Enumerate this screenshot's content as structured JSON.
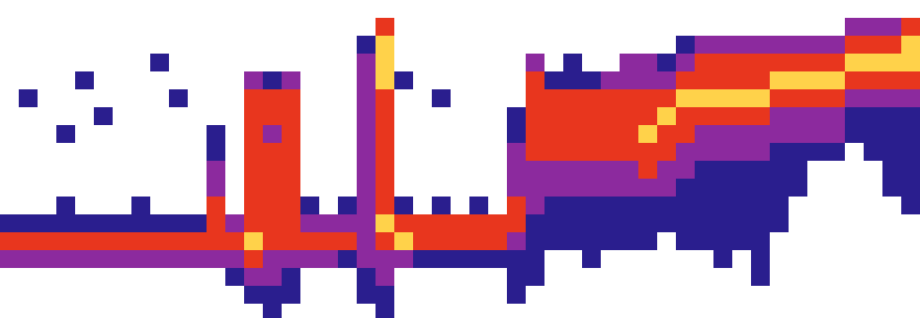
{
  "chart_data": {
    "type": "heatmap",
    "tick_labels": false,
    "grid": false,
    "xlim": [
      0,
      1029
    ],
    "ylim": [
      356,
      0
    ],
    "zlim": [
      1,
      4
    ],
    "colors": [
      "#2a1e8e",
      "#8c2a9e",
      "#e8361e",
      "#ffd24a"
    ],
    "x": [
      10.5,
      31.5,
      52.5,
      73.5,
      94.5,
      115.5,
      136.5,
      157.5,
      178.5,
      199.5,
      220.5,
      241.5,
      262.5,
      283.5,
      304.5,
      325.5,
      346.5,
      367.5,
      388.5,
      409.5,
      430.5,
      451.5,
      472.5,
      493.5,
      514.5,
      535.5,
      556.5,
      577.5,
      598.5,
      619.5,
      640.5,
      661.5,
      682.5,
      703.5,
      724.5,
      745.5,
      766.5,
      787.5,
      808.5,
      829.5,
      850.5,
      871.5,
      892.5,
      913.5,
      934.5,
      955.5,
      976.5,
      997.5,
      1018.5
    ],
    "y": [
      10,
      30,
      50,
      70,
      90,
      110,
      130,
      150,
      170,
      190,
      210,
      230,
      250,
      270,
      290,
      310,
      330,
      350
    ],
    "z": [
      [
        null,
        null,
        null,
        null,
        null,
        null,
        null,
        null,
        null,
        null,
        null,
        null,
        null,
        null,
        null,
        null,
        null,
        null,
        null,
        null,
        null,
        null,
        null,
        null,
        null,
        null,
        null,
        null,
        null,
        null,
        null,
        null,
        null,
        null,
        null,
        null,
        null,
        null,
        null,
        null,
        null,
        null,
        null,
        null,
        null,
        null,
        null,
        null,
        null
      ],
      [
        null,
        null,
        null,
        null,
        null,
        null,
        null,
        null,
        null,
        null,
        null,
        null,
        null,
        null,
        null,
        null,
        null,
        null,
        null,
        null,
        3,
        null,
        null,
        null,
        null,
        null,
        null,
        null,
        null,
        null,
        null,
        null,
        null,
        null,
        null,
        null,
        null,
        null,
        null,
        null,
        null,
        null,
        null,
        null,
        null,
        2,
        2,
        2,
        3
      ],
      [
        null,
        null,
        null,
        null,
        null,
        null,
        null,
        null,
        null,
        null,
        null,
        null,
        null,
        null,
        null,
        null,
        null,
        null,
        null,
        1,
        4,
        null,
        null,
        null,
        null,
        null,
        null,
        null,
        null,
        null,
        null,
        null,
        null,
        null,
        null,
        null,
        1,
        2,
        2,
        2,
        2,
        2,
        2,
        2,
        2,
        3,
        3,
        3,
        4
      ],
      [
        null,
        null,
        null,
        null,
        null,
        null,
        null,
        null,
        1,
        null,
        null,
        null,
        null,
        null,
        null,
        null,
        null,
        null,
        null,
        2,
        4,
        null,
        null,
        null,
        null,
        null,
        null,
        null,
        2,
        null,
        1,
        null,
        null,
        2,
        2,
        1,
        2,
        3,
        3,
        3,
        3,
        3,
        3,
        3,
        3,
        4,
        4,
        4,
        4
      ],
      [
        null,
        null,
        null,
        null,
        1,
        null,
        null,
        null,
        null,
        null,
        null,
        null,
        null,
        2,
        1,
        2,
        null,
        null,
        null,
        2,
        4,
        1,
        null,
        null,
        null,
        null,
        null,
        null,
        3,
        1,
        1,
        1,
        2,
        2,
        2,
        2,
        3,
        3,
        3,
        3,
        3,
        4,
        4,
        4,
        4,
        3,
        3,
        3,
        3
      ],
      [
        null,
        1,
        null,
        null,
        null,
        null,
        null,
        null,
        null,
        1,
        null,
        null,
        null,
        3,
        3,
        3,
        null,
        null,
        null,
        2,
        3,
        null,
        null,
        1,
        null,
        null,
        null,
        null,
        3,
        3,
        3,
        3,
        3,
        3,
        3,
        3,
        4,
        4,
        4,
        4,
        4,
        3,
        3,
        3,
        3,
        2,
        2,
        2,
        2
      ],
      [
        null,
        null,
        null,
        null,
        null,
        1,
        null,
        null,
        null,
        null,
        null,
        null,
        null,
        3,
        3,
        3,
        null,
        null,
        null,
        2,
        3,
        null,
        null,
        null,
        null,
        null,
        null,
        1,
        3,
        3,
        3,
        3,
        3,
        3,
        3,
        4,
        3,
        3,
        3,
        3,
        3,
        2,
        2,
        2,
        2,
        1,
        1,
        1,
        1
      ],
      [
        null,
        null,
        null,
        1,
        null,
        null,
        null,
        null,
        null,
        null,
        null,
        1,
        null,
        3,
        2,
        3,
        null,
        null,
        null,
        2,
        3,
        null,
        null,
        null,
        null,
        null,
        null,
        1,
        3,
        3,
        3,
        3,
        3,
        3,
        4,
        3,
        3,
        2,
        2,
        2,
        2,
        2,
        2,
        2,
        2,
        1,
        1,
        1,
        1
      ],
      [
        null,
        null,
        null,
        null,
        null,
        null,
        null,
        null,
        null,
        null,
        null,
        1,
        null,
        3,
        3,
        3,
        null,
        null,
        null,
        2,
        3,
        null,
        null,
        null,
        null,
        null,
        null,
        2,
        3,
        3,
        3,
        3,
        3,
        3,
        3,
        3,
        2,
        2,
        2,
        2,
        2,
        1,
        1,
        1,
        1,
        null,
        1,
        1,
        1
      ],
      [
        null,
        null,
        null,
        null,
        null,
        null,
        null,
        null,
        null,
        null,
        null,
        2,
        null,
        3,
        3,
        3,
        null,
        null,
        null,
        2,
        3,
        null,
        null,
        null,
        null,
        null,
        null,
        2,
        2,
        2,
        2,
        2,
        2,
        2,
        3,
        2,
        2,
        1,
        1,
        1,
        1,
        1,
        1,
        null,
        null,
        null,
        null,
        1,
        1
      ],
      [
        null,
        null,
        null,
        null,
        null,
        null,
        null,
        null,
        null,
        null,
        null,
        2,
        null,
        3,
        3,
        3,
        null,
        null,
        null,
        2,
        3,
        null,
        null,
        null,
        null,
        null,
        null,
        2,
        2,
        2,
        2,
        2,
        2,
        2,
        2,
        2,
        1,
        1,
        1,
        1,
        1,
        1,
        1,
        null,
        null,
        null,
        null,
        1,
        1
      ],
      [
        null,
        null,
        null,
        1,
        null,
        null,
        null,
        1,
        null,
        null,
        null,
        3,
        null,
        3,
        3,
        3,
        1,
        null,
        1,
        2,
        3,
        1,
        null,
        1,
        null,
        1,
        null,
        3,
        2,
        1,
        1,
        1,
        1,
        1,
        1,
        1,
        1,
        1,
        1,
        1,
        1,
        1,
        null,
        null,
        null,
        null,
        null,
        null,
        1
      ],
      [
        1,
        1,
        1,
        1,
        1,
        1,
        1,
        1,
        1,
        1,
        1,
        3,
        2,
        3,
        3,
        3,
        2,
        2,
        2,
        2,
        4,
        3,
        3,
        3,
        3,
        3,
        3,
        3,
        1,
        1,
        1,
        1,
        1,
        1,
        1,
        1,
        1,
        1,
        1,
        1,
        1,
        1,
        null,
        null,
        null,
        null,
        null,
        null,
        null
      ],
      [
        3,
        3,
        3,
        3,
        3,
        3,
        3,
        3,
        3,
        3,
        3,
        3,
        3,
        4,
        3,
        3,
        3,
        3,
        3,
        2,
        3,
        4,
        3,
        3,
        3,
        3,
        3,
        2,
        1,
        1,
        1,
        1,
        1,
        1,
        1,
        null,
        1,
        1,
        1,
        1,
        1,
        null,
        null,
        null,
        null,
        null,
        null,
        null,
        null
      ],
      [
        2,
        2,
        2,
        2,
        2,
        2,
        2,
        2,
        2,
        2,
        2,
        2,
        2,
        3,
        2,
        2,
        2,
        2,
        1,
        2,
        2,
        2,
        1,
        1,
        1,
        1,
        1,
        1,
        1,
        null,
        null,
        1,
        null,
        null,
        null,
        null,
        null,
        null,
        1,
        null,
        1,
        null,
        null,
        null,
        null,
        null,
        null,
        null,
        null
      ],
      [
        null,
        null,
        null,
        null,
        null,
        null,
        null,
        null,
        null,
        null,
        null,
        null,
        1,
        2,
        2,
        1,
        null,
        null,
        null,
        1,
        2,
        null,
        null,
        null,
        null,
        null,
        null,
        1,
        1,
        null,
        null,
        null,
        null,
        null,
        null,
        null,
        null,
        null,
        null,
        null,
        1,
        null,
        null,
        null,
        null,
        null,
        null,
        null,
        null
      ],
      [
        null,
        null,
        null,
        null,
        null,
        null,
        null,
        null,
        null,
        null,
        null,
        null,
        null,
        1,
        1,
        1,
        null,
        null,
        null,
        1,
        1,
        null,
        null,
        null,
        null,
        null,
        null,
        1,
        null,
        null,
        null,
        null,
        null,
        null,
        null,
        null,
        null,
        null,
        null,
        null,
        null,
        null,
        null,
        null,
        null,
        null,
        null,
        null,
        null
      ],
      [
        null,
        null,
        null,
        null,
        null,
        null,
        null,
        null,
        null,
        null,
        null,
        null,
        null,
        null,
        1,
        null,
        null,
        null,
        null,
        null,
        1,
        null,
        null,
        null,
        null,
        null,
        null,
        null,
        null,
        null,
        null,
        null,
        null,
        null,
        null,
        null,
        null,
        null,
        null,
        null,
        null,
        null,
        null,
        null,
        null,
        null,
        null,
        null,
        null
      ]
    ]
  }
}
